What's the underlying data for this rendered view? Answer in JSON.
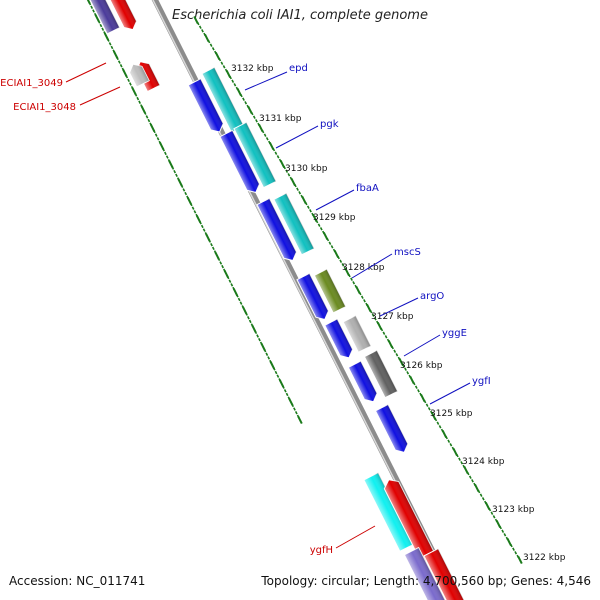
{
  "title": "Escherichia coli IAI1, complete genome",
  "accession_text": "Accession: NC_011741",
  "topology_text": "Topology: circular; Length: 4,700,560 bp; Genes: 4,546",
  "colors": {
    "backbone": "#8a8a8a",
    "tick": "#1a7a1a",
    "forward_label": "#1010c0",
    "reverse_label": "#cc0000"
  },
  "kbp_ticks": [
    "3132 kbp",
    "3131 kbp",
    "3130 kbp",
    "3129 kbp",
    "3128 kbp",
    "3127 kbp",
    "3126 kbp",
    "3125 kbp",
    "3124 kbp",
    "3123 kbp",
    "3122 kbp"
  ],
  "gene_labels_right": [
    "epd",
    "pgk",
    "fbaA",
    "mscS",
    "argO",
    "yggE",
    "ygfI"
  ],
  "gene_labels_left": [
    "ECIAI1_3049",
    "ECIAI1_3048",
    "ygfH"
  ]
}
